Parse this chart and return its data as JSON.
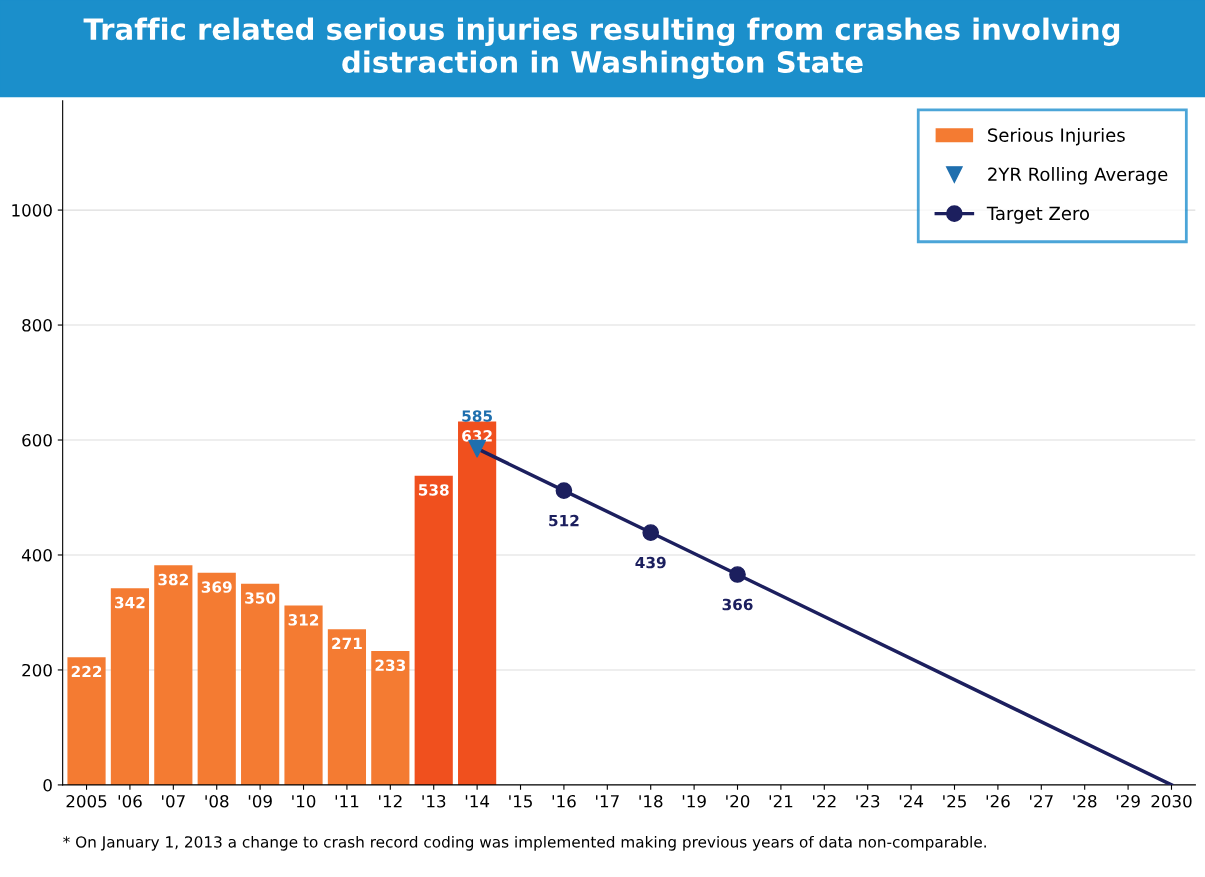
{
  "chart_data": {
    "type": "bar",
    "title": "Traffic related serious injuries resulting from crashes involving distraction in Washington State",
    "categories": [
      "2005",
      "'06",
      "'07",
      "'08",
      "'09",
      "'10",
      "'11",
      "'12",
      "'13",
      "'14",
      "'15",
      "'16",
      "'17",
      "'18",
      "'19",
      "'20",
      "'21",
      "'22",
      "'23",
      "'24",
      "'25",
      "'26",
      "'27",
      "'28",
      "'29",
      "2030"
    ],
    "series": [
      {
        "name": "Serious Injuries",
        "color": "#f47b32",
        "colors": [
          "#f47b32",
          "#f47b32",
          "#f47b32",
          "#f47b32",
          "#f47b32",
          "#f47b32",
          "#f47b32",
          "#f47b32",
          "#f0501e",
          "#f0501e",
          null,
          null,
          null,
          null,
          null,
          null,
          null,
          null,
          null,
          null,
          null,
          null,
          null,
          null,
          null,
          null
        ],
        "values": [
          222,
          342,
          382,
          369,
          350,
          312,
          271,
          233,
          538,
          632,
          null,
          null,
          null,
          null,
          null,
          null,
          null,
          null,
          null,
          null,
          null,
          null,
          null,
          null,
          null,
          null
        ],
        "value_labels": [
          "222",
          "342",
          "382",
          "369",
          "350",
          "312",
          "271",
          "233",
          "538",
          "632",
          null,
          null,
          null,
          null,
          null,
          null,
          null,
          null,
          null,
          null,
          null,
          null,
          null,
          null,
          null,
          null
        ]
      },
      {
        "name": "2YR Rolling Average",
        "type": "scatter",
        "marker": "triangle",
        "color": "#1f6fae",
        "values": [
          null,
          null,
          null,
          null,
          null,
          null,
          null,
          null,
          null,
          585,
          null,
          null,
          null,
          null,
          null,
          null,
          null,
          null,
          null,
          null,
          null,
          null,
          null,
          null,
          null,
          null
        ],
        "value_labels": [
          null,
          null,
          null,
          null,
          null,
          null,
          null,
          null,
          null,
          "585",
          null,
          null,
          null,
          null,
          null,
          null,
          null,
          null,
          null,
          null,
          null,
          null,
          null,
          null,
          null,
          null
        ]
      },
      {
        "name": "Target Zero",
        "type": "line",
        "marker": "circle",
        "color": "#1c1f5e",
        "values": [
          null,
          null,
          null,
          null,
          null,
          null,
          null,
          null,
          null,
          585,
          null,
          512,
          null,
          439,
          null,
          366,
          null,
          null,
          null,
          null,
          null,
          null,
          null,
          null,
          null,
          0
        ],
        "value_labels": [
          null,
          null,
          null,
          null,
          null,
          null,
          null,
          null,
          null,
          null,
          null,
          "512",
          null,
          "439",
          null,
          "366",
          null,
          null,
          null,
          null,
          null,
          null,
          null,
          null,
          null,
          null
        ]
      }
    ],
    "ylim": [
      0,
      1190
    ],
    "yticks": [
      0,
      200,
      400,
      600,
      800,
      1000
    ],
    "grid": "y",
    "legend": "top right",
    "annotations": [
      "* On January 1, 2013 a change to crash record coding was implemented making previous years of data non-comparable."
    ]
  }
}
